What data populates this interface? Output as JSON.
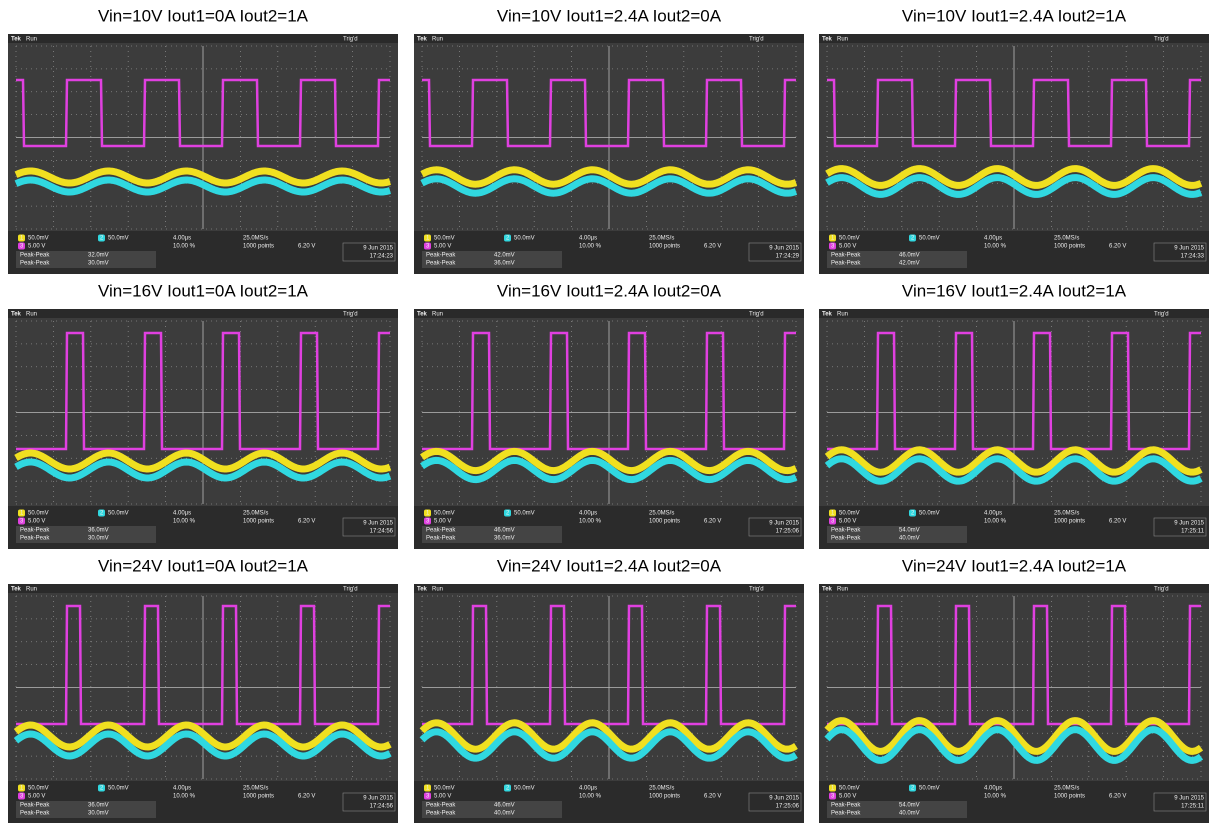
{
  "scope": {
    "brand": "Tek",
    "state": "Run",
    "trigger": "Trig'd",
    "channels": [
      "1",
      "2",
      "3"
    ],
    "ch1_scale": "50.0mV",
    "ch2_scale": "50.0mV",
    "ch3_scale": "5.00 V",
    "timebase": "4.00µs",
    "sample_rate": "25.0MS/s",
    "trigger_pos": "10.00 %",
    "record": "1000 points",
    "trigger_level": "6.20 V",
    "measure": "Peak-Peak",
    "date": "9 Jun 2015"
  },
  "panels": [
    {
      "title": "Vin=10V Iout1=0A Iout2=1A",
      "ch1_pp": "32.0mV",
      "ch2_pp": "30.0mV",
      "time": "17:24:23"
    },
    {
      "title": "Vin=10V Iout1=2.4A Iout2=0A",
      "ch1_pp": "42.0mV",
      "ch2_pp": "36.0mV",
      "time": "17:24:29"
    },
    {
      "title": "Vin=10V Iout1=2.4A Iout2=1A",
      "ch1_pp": "46.0mV",
      "ch2_pp": "42.0mV",
      "time": "17:24:33"
    },
    {
      "title": "Vin=16V Iout1=0A Iout2=1A",
      "ch1_pp": "36.0mV",
      "ch2_pp": "30.0mV",
      "time": "17:24:56"
    },
    {
      "title": "Vin=16V Iout1=2.4A Iout2=0A",
      "ch1_pp": "46.0mV",
      "ch2_pp": "36.0mV",
      "time": "17:25:06"
    },
    {
      "title": "Vin=16V Iout1=2.4A Iout2=1A",
      "ch1_pp": "54.0mV",
      "ch2_pp": "40.0mV",
      "time": "17:25:11"
    },
    {
      "title": "Vin=24V Iout1=0A Iout2=1A",
      "ch1_pp": "36.0mV",
      "ch2_pp": "30.0mV",
      "time": "17:24:56"
    },
    {
      "title": "Vin=24V Iout1=2.4A Iout2=0A",
      "ch1_pp": "46.0mV",
      "ch2_pp": "40.0mV",
      "time": "17:25:06"
    },
    {
      "title": "Vin=24V Iout1=2.4A Iout2=1A",
      "ch1_pp": "54.0mV",
      "ch2_pp": "40.0mV",
      "time": "17:25:11"
    }
  ]
}
